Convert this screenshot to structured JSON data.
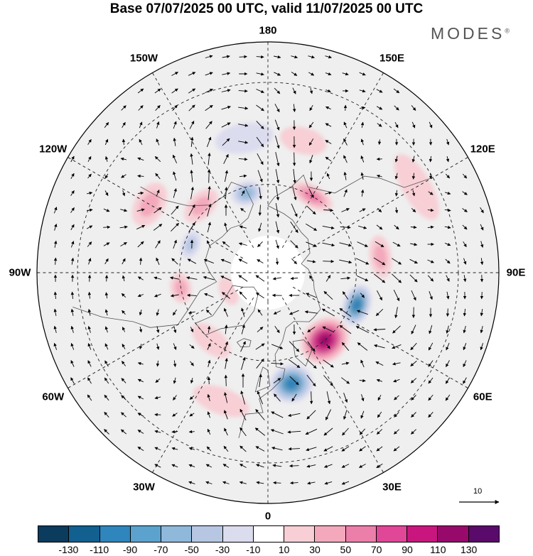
{
  "title": "Base 07/07/2025 00 UTC, valid 11/07/2025 00 UTC",
  "brand": {
    "name": "MODES",
    "mark": "®"
  },
  "map": {
    "projection": "north-polar-stereographic",
    "longitude_labels": [
      {
        "name": "180",
        "lon": 180
      },
      {
        "name": "150E",
        "lon": 150
      },
      {
        "name": "120E",
        "lon": 120
      },
      {
        "name": "90E",
        "lon": 90
      },
      {
        "name": "60E",
        "lon": 60
      },
      {
        "name": "30E",
        "lon": 30
      },
      {
        "name": "0",
        "lon": 0
      },
      {
        "name": "30W",
        "lon": -30
      },
      {
        "name": "60W",
        "lon": -60
      },
      {
        "name": "90W",
        "lon": -90
      },
      {
        "name": "120W",
        "lon": -120
      },
      {
        "name": "150W",
        "lon": -150
      }
    ],
    "anomaly_centers": [
      {
        "lon": 40,
        "lat": 60,
        "value": 110,
        "colat_span": 14,
        "lon_span": 34
      },
      {
        "lon": 12,
        "lat": 52,
        "value": -90,
        "colat_span": 12,
        "lon_span": 22
      },
      {
        "lon": 70,
        "lat": 58,
        "value": -90,
        "colat_span": 9,
        "lon_span": 26
      },
      {
        "lon": 150,
        "lat": 60,
        "value": 60,
        "colat_span": 7,
        "lon_span": 30
      },
      {
        "lon": -165,
        "lat": 62,
        "value": -60,
        "colat_span": 8,
        "lon_span": 22
      },
      {
        "lon": 98,
        "lat": 52,
        "value": 35,
        "colat_span": 7,
        "lon_span": 22
      },
      {
        "lon": -135,
        "lat": 58,
        "value": 40,
        "colat_span": 8,
        "lon_span": 25
      },
      {
        "lon": -110,
        "lat": 62,
        "value": -45,
        "colat_span": 6,
        "lon_span": 20
      },
      {
        "lon": -80,
        "lat": 60,
        "value": 30,
        "colat_span": 7,
        "lon_span": 20
      },
      {
        "lon": -65,
        "lat": 75,
        "value": 25,
        "colat_span": 6,
        "lon_span": 40
      },
      {
        "lon": -40,
        "lat": 60,
        "value": 25,
        "colat_span": 8,
        "lon_span": 30
      },
      {
        "lon": -120,
        "lat": 45,
        "value": 30,
        "colat_span": 9,
        "lon_span": 20
      },
      {
        "lon": 165,
        "lat": 45,
        "value": 25,
        "colat_span": 8,
        "lon_span": 20
      },
      {
        "lon": -170,
        "lat": 45,
        "value": -25,
        "colat_span": 9,
        "lon_span": 25
      },
      {
        "lon": -20,
        "lat": 45,
        "value": 20,
        "colat_span": 8,
        "lon_span": 25
      },
      {
        "lon": 120,
        "lat": 35,
        "value": 15,
        "colat_span": 8,
        "lon_span": 25
      }
    ],
    "reference_vector": "10"
  },
  "colorbar": {
    "colors": [
      "#0b3b5d",
      "#11608f",
      "#2e86bd",
      "#5ba2cf",
      "#8fb8db",
      "#b7c7e3",
      "#dcdcef",
      "#ffffff",
      "#f7cfd5",
      "#f3a9bb",
      "#ec7fa9",
      "#e04797",
      "#c9167e",
      "#970a6c",
      "#5a0a6a"
    ],
    "ticks": [
      "-130",
      "-110",
      "-90",
      "-70",
      "-50",
      "-30",
      "-10",
      "10",
      "30",
      "50",
      "70",
      "90",
      "110",
      "130"
    ]
  }
}
